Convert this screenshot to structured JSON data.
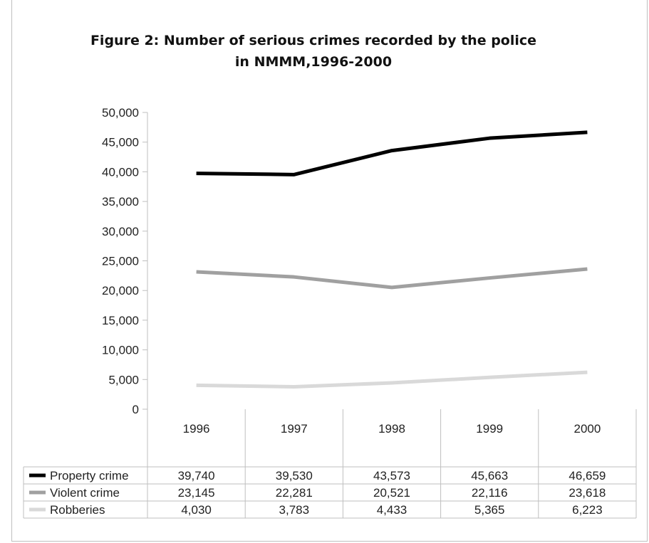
{
  "chart_data": {
    "type": "line",
    "title_line1": "Figure 2: Number of serious crimes recorded by the police",
    "title_line2": "in NMMM,1996-2000",
    "categories": [
      "1996",
      "1997",
      "1998",
      "1999",
      "2000"
    ],
    "ylim": [
      0,
      50000
    ],
    "y_ticks": [
      "0",
      "5,000",
      "10,000",
      "15,000",
      "20,000",
      "25,000",
      "30,000",
      "35,000",
      "40,000",
      "45,000",
      "50,000"
    ],
    "grid": false,
    "legend_placement": "data-table-left",
    "series": [
      {
        "name": "Property crime",
        "values": [
          39740,
          39530,
          43573,
          45663,
          46659
        ],
        "labels": [
          "39,740",
          "39,530",
          "43,573",
          "45,663",
          "46,659"
        ],
        "color": "#000000"
      },
      {
        "name": "Violent crime",
        "values": [
          23145,
          22281,
          20521,
          22116,
          23618
        ],
        "labels": [
          "23,145",
          "22,281",
          "20,521",
          "22,116",
          "23,618"
        ],
        "color": "#a0a0a0"
      },
      {
        "name": "Robberies",
        "values": [
          4030,
          3783,
          4433,
          5365,
          6223
        ],
        "labels": [
          "4,030",
          "3,783",
          "4,433",
          "5,365",
          "6,223"
        ],
        "color": "#d9d9d9"
      }
    ]
  }
}
